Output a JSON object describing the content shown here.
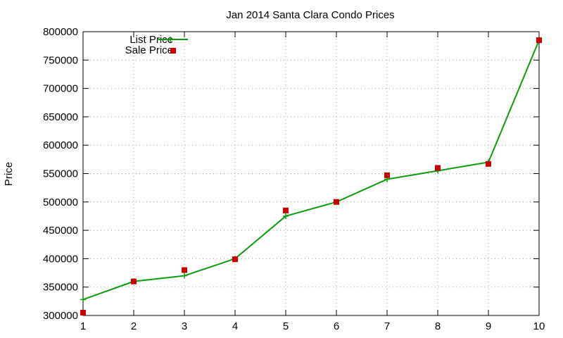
{
  "colors": {
    "list": "#0b9b0b",
    "sale": "#c80000",
    "grid": "#a0a0a0",
    "axis": "#000000"
  },
  "chart_data": {
    "type": "line",
    "title": "Jan 2014 Santa Clara Condo Prices",
    "xlabel": "",
    "ylabel": "Price",
    "x": [
      1,
      2,
      3,
      4,
      5,
      6,
      7,
      8,
      9,
      10
    ],
    "xlim": [
      1,
      10
    ],
    "ylim": [
      300000,
      800000
    ],
    "xticks": [
      1,
      2,
      3,
      4,
      5,
      6,
      7,
      8,
      9,
      10
    ],
    "yticks": [
      300000,
      350000,
      400000,
      450000,
      500000,
      550000,
      600000,
      650000,
      700000,
      750000,
      800000
    ],
    "grid": true,
    "legend_position": "top-left",
    "series": [
      {
        "name": "List Price",
        "style": "line-points",
        "values": [
          328000,
          360000,
          370000,
          400000,
          475000,
          500000,
          540000,
          555000,
          570000,
          785000
        ]
      },
      {
        "name": "Sale Price",
        "style": "points",
        "values": [
          305000,
          360000,
          380000,
          399000,
          485000,
          500000,
          547000,
          560000,
          567000,
          785000
        ]
      }
    ]
  }
}
